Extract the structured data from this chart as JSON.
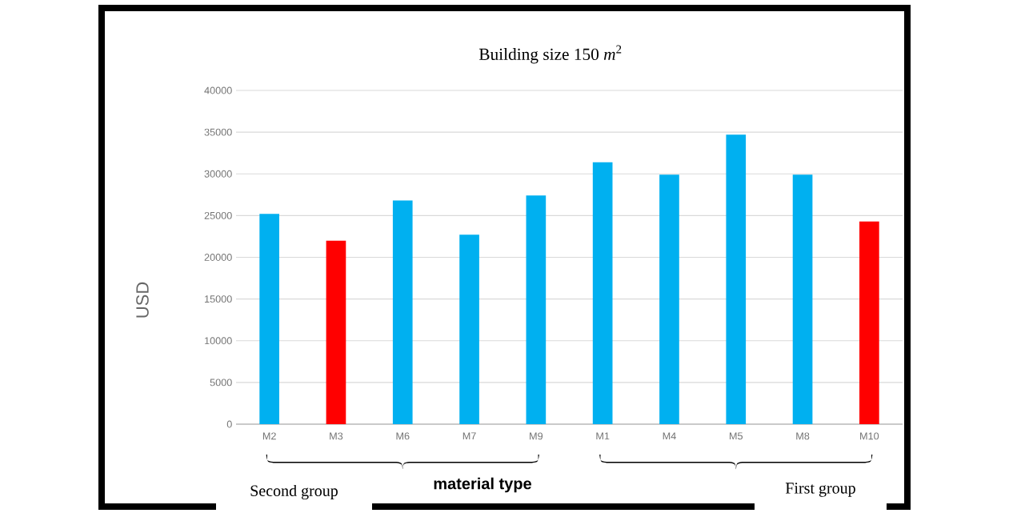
{
  "chart_data": {
    "type": "bar",
    "title": "Building size 150 *m*$^{2}$",
    "categories": [
      "M2",
      "M3",
      "M6",
      "M7",
      "M9",
      "M1",
      "M4",
      "M5",
      "M8",
      "M10"
    ],
    "values": [
      25200,
      22000,
      26800,
      22700,
      27400,
      31400,
      29900,
      34700,
      29900,
      24300
    ],
    "colors": [
      "#00b0f0",
      "#ff0000",
      "#00b0f0",
      "#00b0f0",
      "#00b0f0",
      "#00b0f0",
      "#00b0f0",
      "#00b0f0",
      "#00b0f0",
      "#ff0000"
    ],
    "xlabel": "material type",
    "ylabel": "USD",
    "ylim": [
      0,
      40000
    ],
    "yticks": [
      0,
      5000,
      10000,
      15000,
      20000,
      25000,
      30000,
      35000,
      40000
    ],
    "grid": "y",
    "annotations": [
      "Second group",
      "First group"
    ]
  }
}
